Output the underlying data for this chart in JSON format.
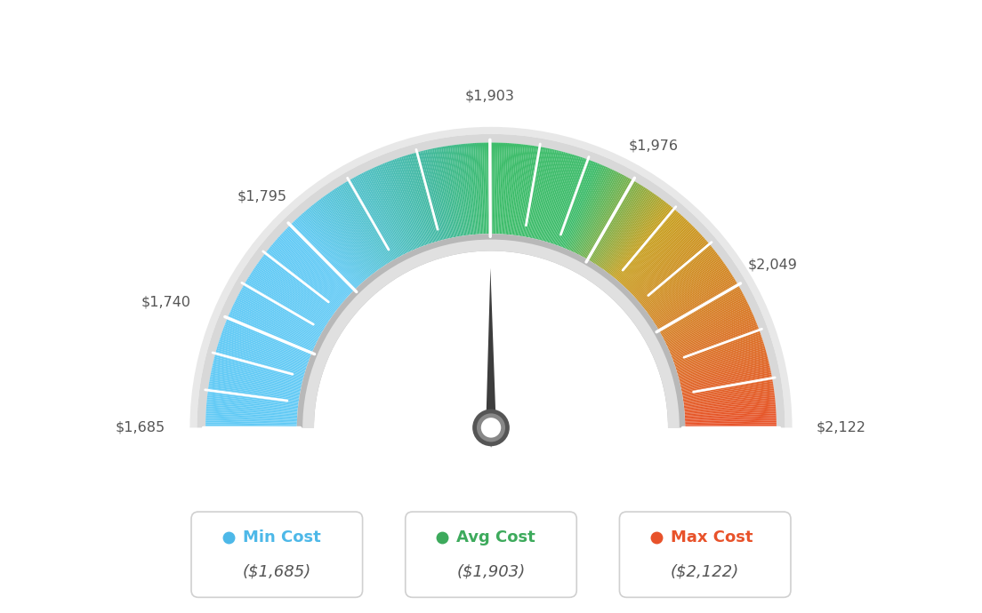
{
  "min_val": 1685,
  "avg_val": 1903,
  "max_val": 2122,
  "tick_labels": [
    "$1,685",
    "$1,740",
    "$1,795",
    "$1,903",
    "$1,976",
    "$2,049",
    "$2,122"
  ],
  "tick_values": [
    1685,
    1740,
    1795,
    1903,
    1976,
    2049,
    2122
  ],
  "legend": [
    {
      "label": "Min Cost",
      "value": "($1,685)",
      "color": "#4db8e8"
    },
    {
      "label": "Avg Cost",
      "value": "($1,903)",
      "color": "#3daa5c"
    },
    {
      "label": "Max Cost",
      "value": "($2,122)",
      "color": "#e8522a"
    }
  ],
  "needle_value": 1903,
  "bg_color": "#ffffff",
  "color_stops": [
    [
      0.0,
      "#62caf5"
    ],
    [
      0.25,
      "#62caf5"
    ],
    [
      0.42,
      "#40b8a0"
    ],
    [
      0.5,
      "#3dbc6a"
    ],
    [
      0.62,
      "#3dbc6a"
    ],
    [
      0.72,
      "#c8a020"
    ],
    [
      1.0,
      "#e8522a"
    ]
  ]
}
